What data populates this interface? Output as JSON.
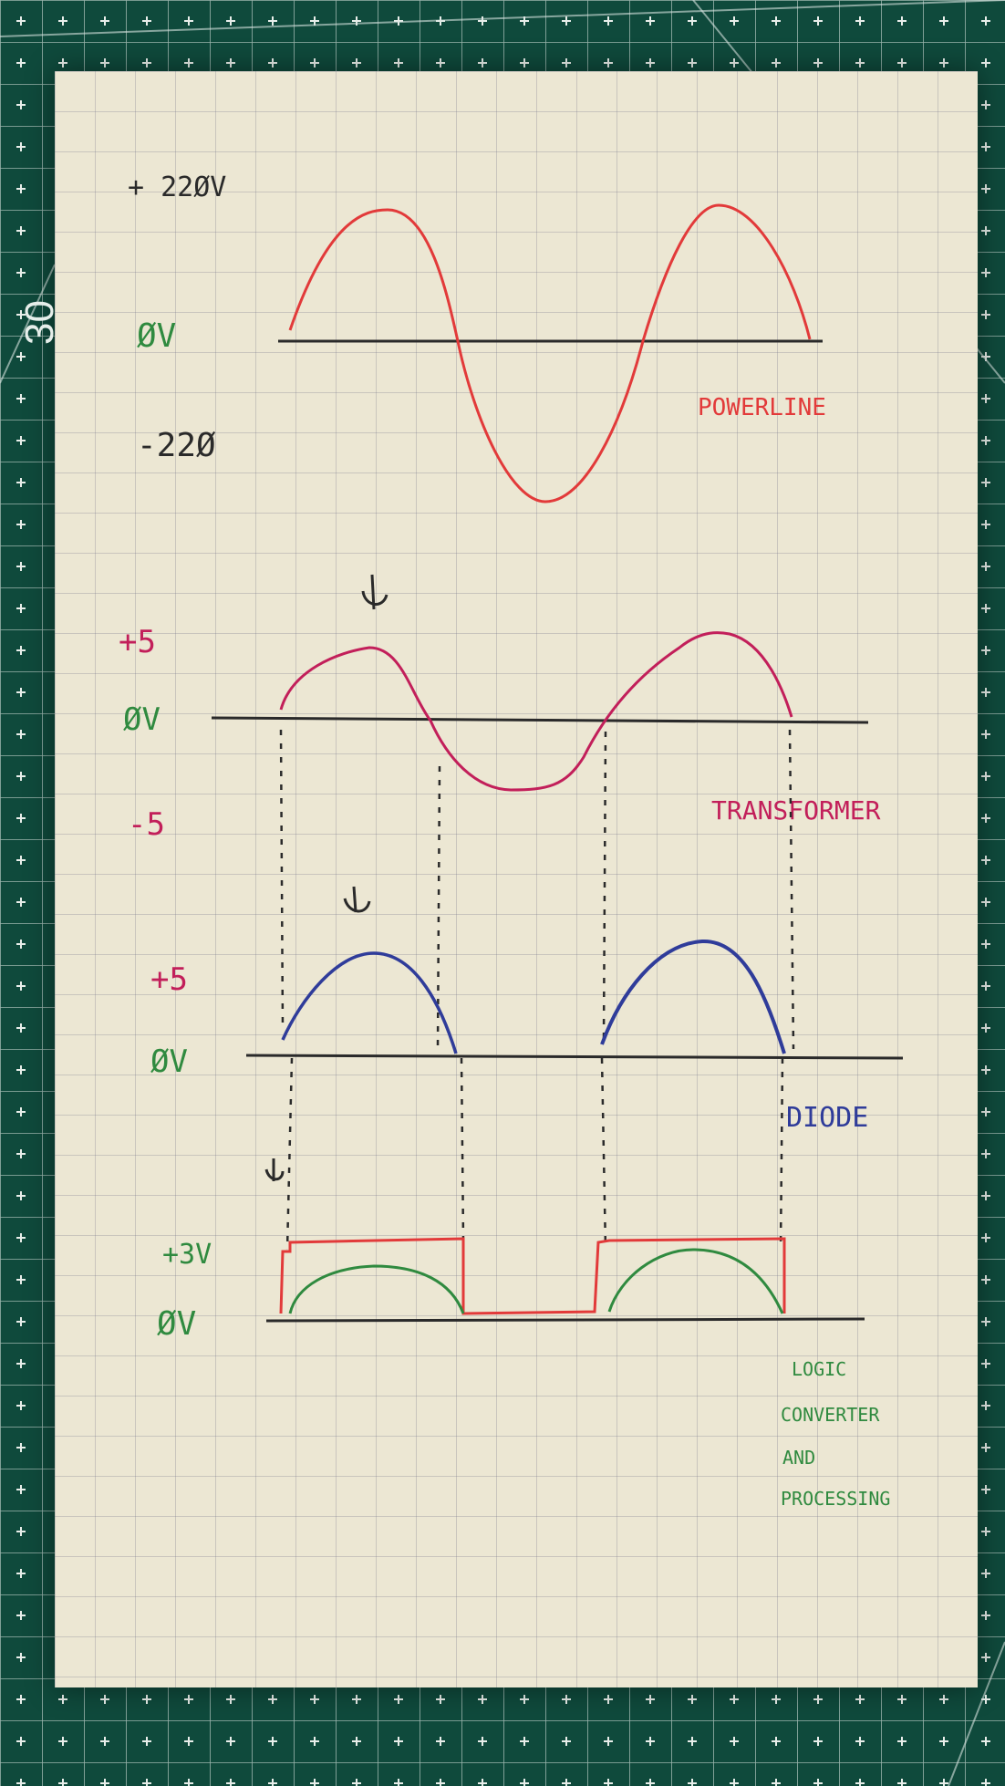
{
  "mat_marking": "30",
  "powerline": {
    "label": "POWERLINE",
    "v_top": "+ 22ØV",
    "v_zero": "ØV",
    "v_bottom": "-22Ø"
  },
  "transformer": {
    "label": "TRANSFORMER",
    "v_top": "+5",
    "v_zero": "ØV",
    "v_bottom": "-5"
  },
  "diode": {
    "label": "DIODE",
    "v_top": "+5",
    "v_zero": "ØV"
  },
  "logic": {
    "label_lines": [
      "LOGIC",
      "CONVERTER",
      "AND",
      "PROCESSING"
    ],
    "v_top": "+3V",
    "v_zero": "ØV"
  },
  "colors": {
    "mat": "#0f4a3c",
    "paper": "#ece7d3",
    "ink_black": "#2a2a2a",
    "ink_red": "#e23a3a",
    "ink_magenta": "#c21f5a",
    "ink_blue": "#2f3c9a",
    "ink_green": "#2f8a3f"
  },
  "icons": {
    "arrow": "hand-drawn-down-arrow"
  }
}
